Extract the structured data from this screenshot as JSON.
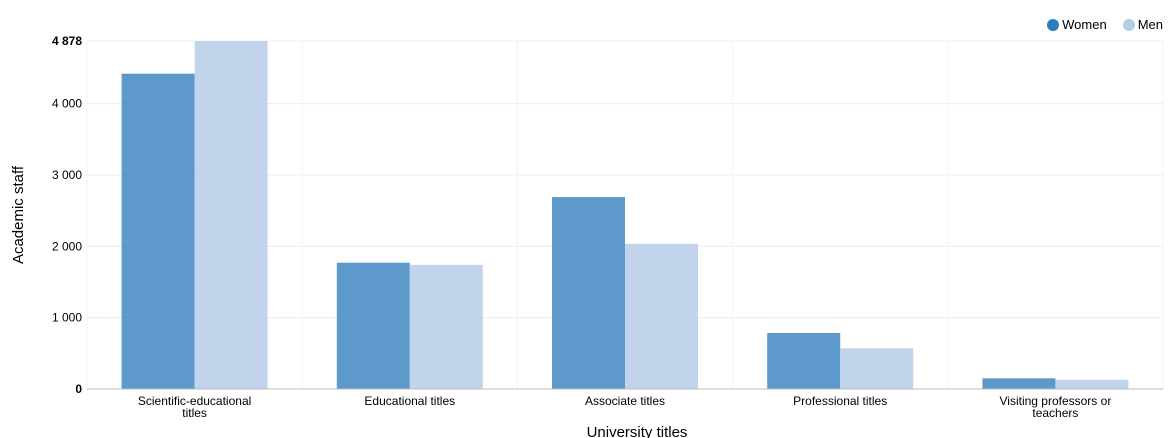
{
  "colors": {
    "women": "#2f7ebc",
    "men": "#b6cde9",
    "grid": "#ececec",
    "axis": "#bdbdbd"
  },
  "legend": [
    {
      "label": "Women",
      "color": "#2f7ebc"
    },
    {
      "label": "Men",
      "color": "#b6cde9"
    }
  ],
  "chart_data": {
    "type": "bar",
    "title": "",
    "xlabel": "University titles",
    "ylabel": "Academic staff",
    "ylim": [
      0,
      4878
    ],
    "yticks": [
      0,
      1000,
      2000,
      3000,
      4000,
      4878
    ],
    "ytick_labels": [
      "0",
      "1 000",
      "2 000",
      "3 000",
      "4 000",
      "4 878"
    ],
    "grid": true,
    "legend_position": "top-right",
    "categories": [
      [
        "Scientific-educational",
        "titles"
      ],
      [
        "Educational titles"
      ],
      [
        "Associate titles"
      ],
      [
        "Professional titles"
      ],
      [
        "Visiting professors or",
        "teachers"
      ]
    ],
    "series": [
      {
        "name": "Women",
        "values": [
          4420,
          1770,
          2690,
          785,
          150
        ]
      },
      {
        "name": "Men",
        "values": [
          4878,
          1740,
          2035,
          570,
          130
        ]
      }
    ]
  }
}
